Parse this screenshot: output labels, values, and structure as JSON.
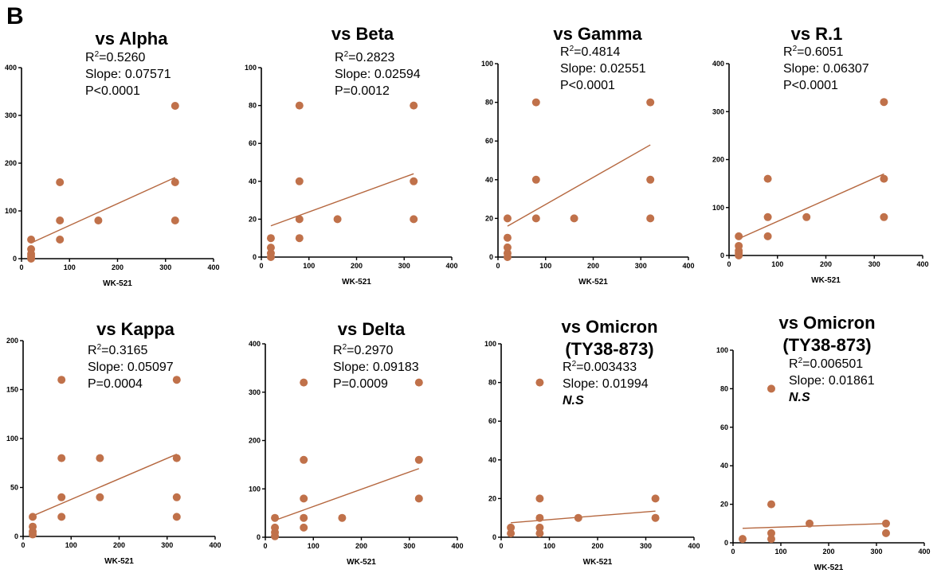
{
  "panel_label": "B",
  "theme": {
    "marker_color": "#C0714A",
    "line_color": "#B5673F",
    "axis_color": "#000000"
  },
  "chart_data": [
    {
      "type": "scatter",
      "title": "vs  Alpha",
      "title_lines": [
        "vs  Alpha"
      ],
      "xlabel": "WK-521",
      "ylabel": "",
      "xlim": [
        0,
        400
      ],
      "ylim": [
        0,
        400
      ],
      "xticks": [
        0,
        100,
        200,
        300,
        400
      ],
      "yticks": [
        0,
        100,
        200,
        300,
        400
      ],
      "stats": {
        "r2": "=0.5260",
        "slope": "Slope: 0.07571",
        "p": "P<0.0001"
      },
      "points": [
        [
          20,
          0
        ],
        [
          20,
          5
        ],
        [
          20,
          10
        ],
        [
          20,
          20
        ],
        [
          20,
          40
        ],
        [
          80,
          40
        ],
        [
          80,
          80
        ],
        [
          80,
          160
        ],
        [
          160,
          80
        ],
        [
          320,
          80
        ],
        [
          320,
          160
        ],
        [
          320,
          320
        ]
      ],
      "fit": {
        "x": [
          20,
          320
        ],
        "y": [
          33,
          170
        ]
      }
    },
    {
      "type": "scatter",
      "title": "vs Beta",
      "title_lines": [
        "vs Beta"
      ],
      "xlabel": "WK-521",
      "ylabel": "",
      "xlim": [
        0,
        400
      ],
      "ylim": [
        0,
        100
      ],
      "xticks": [
        0,
        100,
        200,
        300,
        400
      ],
      "yticks": [
        0,
        20,
        40,
        60,
        80,
        100
      ],
      "stats": {
        "r2": "=0.2823",
        "slope": "Slope: 0.02594",
        "p": "P=0.0012"
      },
      "points": [
        [
          20,
          0
        ],
        [
          20,
          2
        ],
        [
          20,
          5
        ],
        [
          20,
          10
        ],
        [
          80,
          10
        ],
        [
          80,
          20
        ],
        [
          80,
          40
        ],
        [
          80,
          80
        ],
        [
          160,
          20
        ],
        [
          320,
          20
        ],
        [
          320,
          40
        ],
        [
          320,
          80
        ]
      ],
      "fit": {
        "x": [
          20,
          320
        ],
        "y": [
          16.5,
          44
        ]
      }
    },
    {
      "type": "scatter",
      "title": "vs Gamma",
      "title_lines": [
        "vs Gamma"
      ],
      "xlabel": "WK-521",
      "ylabel": "",
      "xlim": [
        0,
        400
      ],
      "ylim": [
        0,
        100
      ],
      "xticks": [
        0,
        100,
        200,
        300,
        400
      ],
      "yticks": [
        0,
        20,
        40,
        60,
        80,
        100
      ],
      "stats": {
        "r2": "=0.4814",
        "slope": "Slope: 0.02551",
        "p": "P<0.0001"
      },
      "points": [
        [
          20,
          0
        ],
        [
          20,
          2
        ],
        [
          20,
          5
        ],
        [
          20,
          10
        ],
        [
          20,
          20
        ],
        [
          80,
          20
        ],
        [
          80,
          40
        ],
        [
          80,
          80
        ],
        [
          160,
          20
        ],
        [
          320,
          20
        ],
        [
          320,
          40
        ],
        [
          320,
          80
        ]
      ],
      "fit": {
        "x": [
          20,
          320
        ],
        "y": [
          16,
          58
        ]
      }
    },
    {
      "type": "scatter",
      "title": "vs R.1",
      "title_lines": [
        "vs R.1"
      ],
      "xlabel": "WK-521",
      "ylabel": "",
      "xlim": [
        0,
        400
      ],
      "ylim": [
        0,
        400
      ],
      "xticks": [
        0,
        100,
        200,
        300,
        400
      ],
      "yticks": [
        0,
        100,
        200,
        300,
        400
      ],
      "stats": {
        "r2": "=0.6051",
        "slope": "Slope: 0.06307",
        "p": "P<0.0001"
      },
      "points": [
        [
          20,
          0
        ],
        [
          20,
          5
        ],
        [
          20,
          10
        ],
        [
          20,
          20
        ],
        [
          20,
          40
        ],
        [
          80,
          40
        ],
        [
          80,
          80
        ],
        [
          80,
          160
        ],
        [
          160,
          80
        ],
        [
          320,
          80
        ],
        [
          320,
          160
        ],
        [
          320,
          320
        ]
      ],
      "fit": {
        "x": [
          20,
          320
        ],
        "y": [
          35,
          170
        ]
      }
    },
    {
      "type": "scatter",
      "title": "vs Kappa",
      "title_lines": [
        "vs Kappa"
      ],
      "xlabel": "WK-521",
      "ylabel": "",
      "xlim": [
        0,
        400
      ],
      "ylim": [
        0,
        200
      ],
      "xticks": [
        0,
        100,
        200,
        300,
        400
      ],
      "yticks": [
        0,
        50,
        100,
        150,
        200
      ],
      "stats": {
        "r2": "=0.3165",
        "slope": "Slope: 0.05097",
        "p": "P=0.0004"
      },
      "points": [
        [
          20,
          2
        ],
        [
          20,
          5
        ],
        [
          20,
          10
        ],
        [
          20,
          20
        ],
        [
          80,
          20
        ],
        [
          80,
          40
        ],
        [
          80,
          80
        ],
        [
          80,
          160
        ],
        [
          160,
          40
        ],
        [
          160,
          80
        ],
        [
          320,
          20
        ],
        [
          320,
          40
        ],
        [
          320,
          80
        ],
        [
          320,
          160
        ]
      ],
      "fit": {
        "x": [
          20,
          320
        ],
        "y": [
          21,
          84
        ]
      }
    },
    {
      "type": "scatter",
      "title": "vs Delta",
      "title_lines": [
        "vs Delta"
      ],
      "xlabel": "WK-521",
      "ylabel": "",
      "xlim": [
        0,
        400
      ],
      "ylim": [
        0,
        400
      ],
      "xticks": [
        0,
        100,
        200,
        300,
        400
      ],
      "yticks": [
        0,
        100,
        200,
        300,
        400
      ],
      "stats": {
        "r2": "=0.2970",
        "slope": "Slope: 0.09183",
        "p": "P=0.0009"
      },
      "points": [
        [
          20,
          2
        ],
        [
          20,
          10
        ],
        [
          20,
          20
        ],
        [
          20,
          40
        ],
        [
          80,
          20
        ],
        [
          80,
          40
        ],
        [
          80,
          80
        ],
        [
          80,
          160
        ],
        [
          80,
          320
        ],
        [
          160,
          40
        ],
        [
          320,
          80
        ],
        [
          320,
          160
        ],
        [
          320,
          320
        ]
      ],
      "fit": {
        "x": [
          20,
          320
        ],
        "y": [
          35,
          142
        ]
      }
    },
    {
      "type": "scatter",
      "title": "vs Omicron (TY38-873)",
      "title_lines": [
        "vs Omicron",
        "(TY38-873)"
      ],
      "xlabel": "WK-521",
      "ylabel": "",
      "xlim": [
        0,
        400
      ],
      "ylim": [
        0,
        100
      ],
      "xticks": [
        0,
        100,
        200,
        300,
        400
      ],
      "yticks": [
        0,
        20,
        40,
        60,
        80,
        100
      ],
      "stats": {
        "r2": "=0.003433",
        "slope": "Slope: 0.01994",
        "p": "N.S"
      },
      "points": [
        [
          20,
          2
        ],
        [
          20,
          5
        ],
        [
          80,
          2
        ],
        [
          80,
          5
        ],
        [
          80,
          10
        ],
        [
          80,
          20
        ],
        [
          80,
          80
        ],
        [
          160,
          10
        ],
        [
          320,
          10
        ],
        [
          320,
          20
        ]
      ],
      "fit": {
        "x": [
          20,
          320
        ],
        "y": [
          7.5,
          13.5
        ]
      }
    },
    {
      "type": "scatter",
      "title": "vs Omicron (TY38-873)",
      "title_lines": [
        "vs Omicron",
        "(TY38-873)"
      ],
      "xlabel": "WK-521",
      "ylabel": "",
      "xlim": [
        0,
        400
      ],
      "ylim": [
        0,
        100
      ],
      "xticks": [
        0,
        100,
        200,
        300,
        400
      ],
      "yticks": [
        0,
        20,
        40,
        60,
        80,
        100
      ],
      "stats": {
        "r2": "=0.006501",
        "slope": "Slope: 0.01861",
        "p": "N.S"
      },
      "points": [
        [
          20,
          2
        ],
        [
          80,
          2
        ],
        [
          80,
          5
        ],
        [
          80,
          20
        ],
        [
          80,
          80
        ],
        [
          160,
          10
        ],
        [
          320,
          5
        ],
        [
          320,
          10
        ]
      ],
      "fit": {
        "x": [
          20,
          320
        ],
        "y": [
          7.5,
          10
        ]
      }
    }
  ]
}
